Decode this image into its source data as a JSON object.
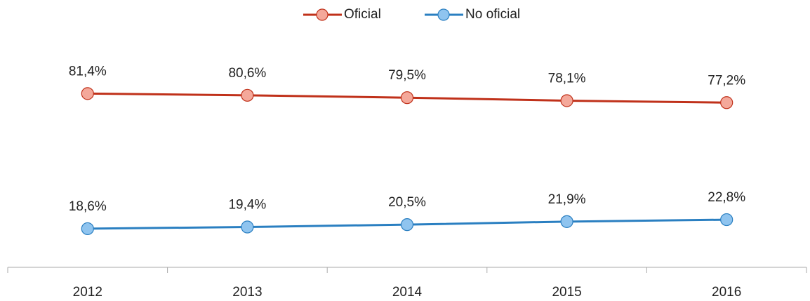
{
  "chart_data": {
    "type": "line",
    "categories": [
      "2012",
      "2013",
      "2014",
      "2015",
      "2016"
    ],
    "series": [
      {
        "name": "Oficial",
        "color": "#c0311a",
        "marker_color": "#f4a89a",
        "values": [
          81.4,
          80.6,
          79.5,
          78.1,
          77.2
        ],
        "value_labels": [
          "81,4%",
          "80,6%",
          "79,5%",
          "78,1%",
          "77,2%"
        ]
      },
      {
        "name": "No oficial",
        "color": "#2a7fc1",
        "marker_color": "#8fc4ef",
        "values": [
          18.6,
          19.4,
          20.5,
          21.9,
          22.8
        ],
        "value_labels": [
          "18,6%",
          "19,4%",
          "20,5%",
          "21,9%",
          "22,8%"
        ]
      }
    ],
    "ylim": [
      0,
      90
    ],
    "legend": "top"
  }
}
